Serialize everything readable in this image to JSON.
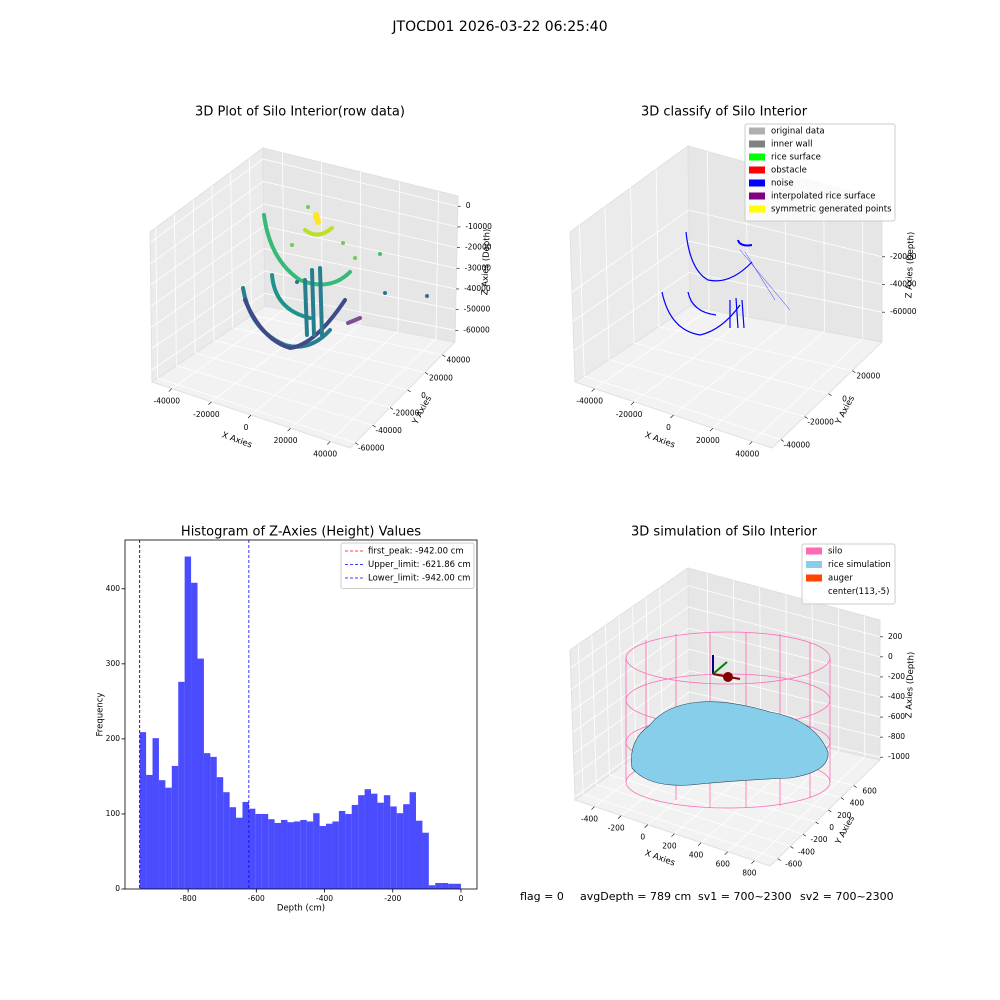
{
  "suptitle": "JTOCD01 2026-03-22 06:25:40",
  "chart_data": [
    {
      "type": "scatter3d",
      "title": "3D Plot of Silo Interior(row data)",
      "xlabel": "X Axies",
      "ylabel": "Y Axies",
      "zlabel": "Z Axies (Depth)",
      "xticks": [
        -40000,
        -20000,
        0,
        20000,
        40000
      ],
      "yticks": [
        -60000,
        -40000,
        -20000,
        0,
        20000,
        40000
      ],
      "zticks": [
        0,
        -10000,
        -20000,
        -30000,
        -40000,
        -50000,
        -60000
      ],
      "grid": true
    },
    {
      "type": "scatter3d",
      "title": "3D classify of Silo Interior",
      "xlabel": "X Axies",
      "ylabel": "Y Axies",
      "zlabel": "Z Axies (Depth)",
      "xticks": [
        -40000,
        -20000,
        0,
        20000,
        40000
      ],
      "yticks": [
        -40000,
        -20000,
        0,
        20000
      ],
      "zticks": [
        -20000,
        -40000,
        -60000
      ],
      "grid": true,
      "legend": {
        "loc": "upper right",
        "entries": [
          {
            "name": "original data",
            "color": "#b0b0b0"
          },
          {
            "name": "inner wall",
            "color": "#808080"
          },
          {
            "name": "rice surface",
            "color": "#00ff00"
          },
          {
            "name": "obstacle",
            "color": "#ff0000"
          },
          {
            "name": "noise",
            "color": "#0000ff"
          },
          {
            "name": "interpolated rice surface",
            "color": "#800080"
          },
          {
            "name": "symmetric generated points",
            "color": "#ffff00"
          }
        ]
      }
    },
    {
      "type": "histogram",
      "title": "Histogram of Z-Axies (Height) Values",
      "xlabel": "Depth (cm)",
      "ylabel": "Frequency",
      "bins": [
        -942,
        -923.16,
        -904.32,
        -885.48,
        -866.64,
        -847.8,
        -828.96,
        -810.12,
        -791.28,
        -772.44,
        -753.6,
        -734.76,
        -715.92,
        -697.08,
        -678.24,
        -659.4,
        -640.56,
        -621.72,
        -602.88,
        -584.04,
        -565.2,
        -546.36,
        -527.52,
        -508.68,
        -489.84,
        -471,
        -452.16,
        -433.32,
        -414.48,
        -395.64,
        -376.8,
        -357.96,
        -339.12,
        -320.28,
        -301.44,
        -282.6,
        -263.76,
        -244.92,
        -226.08,
        -207.24,
        -188.4,
        -169.56,
        -150.72,
        -131.88,
        -113.04,
        -94.2,
        -75.36,
        -56.52,
        -37.68,
        -18.84,
        0
      ],
      "counts": [
        209,
        152,
        201,
        145,
        135,
        164,
        276,
        443,
        408,
        307,
        181,
        176,
        149,
        129,
        109,
        95,
        116,
        107,
        100,
        100,
        93,
        88,
        92,
        89,
        90,
        92,
        90,
        101,
        84,
        87,
        90,
        104,
        100,
        112,
        125,
        133,
        127,
        115,
        125,
        110,
        101,
        113,
        129,
        91,
        75,
        5,
        8,
        8,
        7,
        7
      ],
      "color": "#0000ff",
      "alpha": 0.7,
      "xlim": [
        -985,
        47
      ],
      "ylim": [
        0,
        465
      ],
      "xticks": [
        -800,
        -600,
        -400,
        -200,
        0
      ],
      "yticks": [
        0,
        100,
        200,
        300,
        400
      ],
      "lines": [
        {
          "name": "first_peak: -942.00 cm",
          "value": -942,
          "color": "#ff0000"
        },
        {
          "name": "Upper_limit: -621.86 cm",
          "value": -621.86,
          "color": "#0000ff"
        },
        {
          "name": "Lower_limit: -942.00 cm",
          "value": -942,
          "color": "#0000ff"
        }
      ],
      "legend": "upper right"
    },
    {
      "type": "surface3d",
      "title": "3D simulation of Silo Interior",
      "xlabel": "X Axies",
      "ylabel": "Y Axies",
      "zlabel": "Z Axies (Depth)",
      "xticks": [
        -400,
        -200,
        0,
        200,
        400,
        600,
        800
      ],
      "yticks": [
        -600,
        -400,
        -200,
        0,
        200,
        400,
        600
      ],
      "zticks": [
        200,
        0,
        -200,
        -400,
        -600,
        -800,
        -1000
      ],
      "grid": true,
      "legend": {
        "loc": "upper right",
        "entries": [
          {
            "name": "silo",
            "color": "#ff69b4"
          },
          {
            "name": "rice simulation",
            "color": "#87ceeb"
          },
          {
            "name": "auger",
            "color": "#ff4500"
          },
          {
            "name": "center(113,-5)",
            "color": "#ffffff"
          }
        ]
      }
    }
  ],
  "footer": {
    "flag": "flag = 0",
    "avgDepth": "avgDepth = 789 cm",
    "sv1": "sv1 = 700~2300",
    "sv2": "sv2 = 700~2300"
  }
}
